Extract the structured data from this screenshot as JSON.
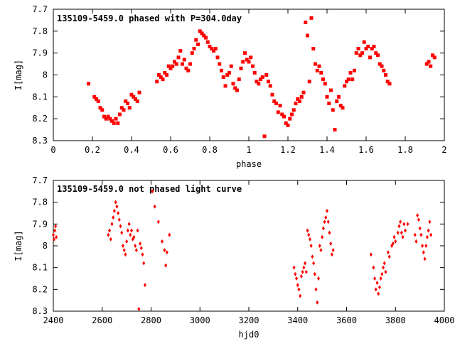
{
  "chart_data": [
    {
      "type": "scatter",
      "title": "135109-5459.0 phased with P=304.0day",
      "xlabel": "phase",
      "ylabel": "I[mag]",
      "xlim": [
        0,
        2
      ],
      "ylim": [
        7.7,
        8.3
      ],
      "y_inverted": true,
      "x_ticks": [
        "0",
        "0.2",
        "0.4",
        "0.6",
        "0.8",
        "1",
        "1.2",
        "1.4",
        "1.6",
        "1.8",
        "2"
      ],
      "y_ticks": [
        "7.7",
        "7.8",
        "7.9",
        "8",
        "8.1",
        "8.2",
        "8.3"
      ],
      "marker_color": "#ff0000",
      "grid": false,
      "points": [
        [
          0.18,
          8.04
        ],
        [
          0.21,
          8.1
        ],
        [
          0.22,
          8.11
        ],
        [
          0.23,
          8.12
        ],
        [
          0.24,
          8.15
        ],
        [
          0.25,
          8.16
        ],
        [
          0.26,
          8.19
        ],
        [
          0.27,
          8.2
        ],
        [
          0.28,
          8.19
        ],
        [
          0.29,
          8.2
        ],
        [
          0.3,
          8.21
        ],
        [
          0.31,
          8.22
        ],
        [
          0.32,
          8.2
        ],
        [
          0.33,
          8.22
        ],
        [
          0.34,
          8.18
        ],
        [
          0.35,
          8.15
        ],
        [
          0.36,
          8.16
        ],
        [
          0.37,
          8.12
        ],
        [
          0.38,
          8.13
        ],
        [
          0.39,
          8.15
        ],
        [
          0.4,
          8.09
        ],
        [
          0.41,
          8.1
        ],
        [
          0.42,
          8.11
        ],
        [
          0.43,
          8.12
        ],
        [
          0.44,
          8.08
        ],
        [
          0.53,
          8.03
        ],
        [
          0.54,
          8.0
        ],
        [
          0.55,
          8.01
        ],
        [
          0.56,
          8.02
        ],
        [
          0.57,
          7.99
        ],
        [
          0.58,
          8.0
        ],
        [
          0.59,
          7.96
        ],
        [
          0.6,
          7.97
        ],
        [
          0.61,
          7.96
        ],
        [
          0.62,
          7.94
        ],
        [
          0.63,
          7.95
        ],
        [
          0.64,
          7.92
        ],
        [
          0.65,
          7.89
        ],
        [
          0.66,
          7.95
        ],
        [
          0.67,
          7.93
        ],
        [
          0.68,
          7.97
        ],
        [
          0.69,
          7.98
        ],
        [
          0.7,
          7.95
        ],
        [
          0.71,
          7.9
        ],
        [
          0.72,
          7.88
        ],
        [
          0.73,
          7.84
        ],
        [
          0.74,
          7.86
        ],
        [
          0.75,
          7.8
        ],
        [
          0.76,
          7.81
        ],
        [
          0.77,
          7.82
        ],
        [
          0.78,
          7.83
        ],
        [
          0.79,
          7.85
        ],
        [
          0.8,
          7.87
        ],
        [
          0.81,
          7.88
        ],
        [
          0.82,
          7.89
        ],
        [
          0.83,
          7.88
        ],
        [
          0.84,
          7.92
        ],
        [
          0.85,
          7.95
        ],
        [
          0.86,
          7.98
        ],
        [
          0.87,
          8.01
        ],
        [
          0.88,
          8.05
        ],
        [
          0.89,
          8.0
        ],
        [
          0.9,
          7.99
        ],
        [
          0.91,
          7.96
        ],
        [
          0.92,
          8.04
        ],
        [
          0.93,
          8.06
        ],
        [
          0.94,
          8.07
        ],
        [
          0.95,
          8.02
        ],
        [
          0.96,
          7.97
        ],
        [
          0.97,
          7.94
        ],
        [
          0.98,
          7.9
        ],
        [
          0.99,
          7.93
        ],
        [
          1.0,
          7.94
        ],
        [
          1.01,
          7.92
        ],
        [
          1.02,
          7.96
        ],
        [
          1.03,
          7.99
        ],
        [
          1.04,
          8.03
        ],
        [
          1.05,
          8.04
        ],
        [
          1.06,
          8.02
        ],
        [
          1.07,
          8.01
        ],
        [
          1.08,
          8.28
        ],
        [
          1.09,
          8.0
        ],
        [
          1.1,
          8.03
        ],
        [
          1.11,
          8.05
        ],
        [
          1.12,
          8.09
        ],
        [
          1.13,
          8.12
        ],
        [
          1.14,
          8.13
        ],
        [
          1.15,
          8.17
        ],
        [
          1.16,
          8.14
        ],
        [
          1.17,
          8.18
        ],
        [
          1.18,
          8.19
        ],
        [
          1.19,
          8.22
        ],
        [
          1.2,
          8.23
        ],
        [
          1.21,
          8.2
        ],
        [
          1.22,
          8.18
        ],
        [
          1.23,
          8.16
        ],
        [
          1.24,
          8.13
        ],
        [
          1.25,
          8.11
        ],
        [
          1.26,
          8.12
        ],
        [
          1.27,
          8.1
        ],
        [
          1.28,
          8.08
        ],
        [
          1.29,
          7.76
        ],
        [
          1.3,
          7.82
        ],
        [
          1.31,
          8.03
        ],
        [
          1.32,
          7.74
        ],
        [
          1.33,
          7.88
        ],
        [
          1.34,
          7.95
        ],
        [
          1.35,
          7.98
        ],
        [
          1.36,
          7.96
        ],
        [
          1.37,
          7.99
        ],
        [
          1.38,
          8.02
        ],
        [
          1.39,
          8.04
        ],
        [
          1.4,
          8.1
        ],
        [
          1.41,
          8.13
        ],
        [
          1.42,
          8.07
        ],
        [
          1.43,
          8.16
        ],
        [
          1.44,
          8.25
        ],
        [
          1.45,
          8.12
        ],
        [
          1.46,
          8.1
        ],
        [
          1.47,
          8.14
        ],
        [
          1.48,
          8.15
        ],
        [
          1.49,
          8.05
        ],
        [
          1.5,
          8.03
        ],
        [
          1.51,
          8.02
        ],
        [
          1.52,
          7.99
        ],
        [
          1.53,
          8.02
        ],
        [
          1.54,
          7.98
        ],
        [
          1.55,
          7.9
        ],
        [
          1.56,
          7.88
        ],
        [
          1.57,
          7.91
        ],
        [
          1.58,
          7.9
        ],
        [
          1.59,
          7.85
        ],
        [
          1.6,
          7.88
        ],
        [
          1.61,
          7.87
        ],
        [
          1.62,
          7.92
        ],
        [
          1.63,
          7.88
        ],
        [
          1.64,
          7.87
        ],
        [
          1.65,
          7.9
        ],
        [
          1.66,
          7.91
        ],
        [
          1.67,
          7.95
        ],
        [
          1.68,
          7.96
        ],
        [
          1.69,
          7.98
        ],
        [
          1.7,
          8.0
        ],
        [
          1.71,
          8.03
        ],
        [
          1.72,
          8.04
        ],
        [
          1.91,
          7.95
        ],
        [
          1.92,
          7.94
        ],
        [
          1.93,
          7.96
        ],
        [
          1.94,
          7.91
        ],
        [
          1.95,
          7.92
        ]
      ]
    },
    {
      "type": "scatter",
      "title": "135109-5459.0 not phased light curve",
      "xlabel": "hjd0",
      "ylabel": "I[mag]",
      "xlim": [
        2400,
        4000
      ],
      "ylim": [
        7.7,
        8.3
      ],
      "y_inverted": true,
      "x_ticks": [
        "2400",
        "2600",
        "2800",
        "3000",
        "3200",
        "3400",
        "3600",
        "3800",
        "4000"
      ],
      "y_ticks": [
        "7.7",
        "7.8",
        "7.9",
        "8",
        "8.1",
        "8.2",
        "8.3"
      ],
      "marker_color": "#ff0000",
      "grid": false,
      "points": [
        [
          2400,
          7.95
        ],
        [
          2403,
          7.97
        ],
        [
          2406,
          7.93
        ],
        [
          2409,
          7.91
        ],
        [
          2412,
          7.96
        ],
        [
          2625,
          7.95
        ],
        [
          2630,
          7.93
        ],
        [
          2635,
          7.97
        ],
        [
          2640,
          7.9
        ],
        [
          2645,
          7.87
        ],
        [
          2650,
          7.84
        ],
        [
          2655,
          7.8
        ],
        [
          2660,
          7.82
        ],
        [
          2665,
          7.85
        ],
        [
          2670,
          7.88
        ],
        [
          2675,
          7.91
        ],
        [
          2680,
          7.94
        ],
        [
          2685,
          8.0
        ],
        [
          2690,
          8.02
        ],
        [
          2695,
          8.04
        ],
        [
          2700,
          7.98
        ],
        [
          2705,
          7.93
        ],
        [
          2710,
          7.9
        ],
        [
          2715,
          7.95
        ],
        [
          2720,
          7.93
        ],
        [
          2725,
          7.97
        ],
        [
          2730,
          7.96
        ],
        [
          2735,
          8.0
        ],
        [
          2740,
          8.02
        ],
        [
          2745,
          7.93
        ],
        [
          2750,
          8.29
        ],
        [
          2755,
          7.99
        ],
        [
          2760,
          8.01
        ],
        [
          2765,
          8.04
        ],
        [
          2770,
          8.08
        ],
        [
          2775,
          8.18
        ],
        [
          2805,
          7.75
        ],
        [
          2815,
          7.82
        ],
        [
          2830,
          7.89
        ],
        [
          2845,
          7.98
        ],
        [
          2855,
          8.02
        ],
        [
          2860,
          8.09
        ],
        [
          2865,
          8.03
        ],
        [
          2875,
          7.95
        ],
        [
          3385,
          8.1
        ],
        [
          3390,
          8.13
        ],
        [
          3395,
          8.15
        ],
        [
          3400,
          8.18
        ],
        [
          3405,
          8.2
        ],
        [
          3410,
          8.23
        ],
        [
          3415,
          8.14
        ],
        [
          3420,
          8.12
        ],
        [
          3425,
          8.1
        ],
        [
          3430,
          8.08
        ],
        [
          3435,
          8.12
        ],
        [
          3440,
          7.93
        ],
        [
          3445,
          7.95
        ],
        [
          3450,
          7.97
        ],
        [
          3455,
          8.0
        ],
        [
          3460,
          8.05
        ],
        [
          3465,
          8.08
        ],
        [
          3470,
          8.13
        ],
        [
          3475,
          8.2
        ],
        [
          3480,
          8.26
        ],
        [
          3485,
          8.15
        ],
        [
          3490,
          8.0
        ],
        [
          3495,
          8.02
        ],
        [
          3500,
          7.96
        ],
        [
          3505,
          7.92
        ],
        [
          3510,
          7.89
        ],
        [
          3515,
          7.87
        ],
        [
          3520,
          7.84
        ],
        [
          3525,
          7.89
        ],
        [
          3530,
          7.94
        ],
        [
          3535,
          7.99
        ],
        [
          3540,
          8.04
        ],
        [
          3545,
          8.02
        ],
        [
          3700,
          8.04
        ],
        [
          3710,
          8.1
        ],
        [
          3715,
          8.15
        ],
        [
          3720,
          8.2
        ],
        [
          3725,
          8.17
        ],
        [
          3730,
          8.22
        ],
        [
          3735,
          8.19
        ],
        [
          3740,
          8.15
        ],
        [
          3745,
          8.13
        ],
        [
          3750,
          8.1
        ],
        [
          3755,
          8.08
        ],
        [
          3760,
          8.12
        ],
        [
          3770,
          8.03
        ],
        [
          3775,
          8.05
        ],
        [
          3785,
          8.0
        ],
        [
          3790,
          7.99
        ],
        [
          3795,
          7.96
        ],
        [
          3800,
          7.98
        ],
        [
          3810,
          7.94
        ],
        [
          3815,
          7.91
        ],
        [
          3820,
          7.89
        ],
        [
          3825,
          7.94
        ],
        [
          3830,
          7.96
        ],
        [
          3835,
          7.9
        ],
        [
          3840,
          7.93
        ],
        [
          3850,
          7.9
        ],
        [
          3880,
          7.95
        ],
        [
          3885,
          7.98
        ],
        [
          3890,
          7.86
        ],
        [
          3895,
          7.88
        ],
        [
          3900,
          7.92
        ],
        [
          3905,
          7.95
        ],
        [
          3910,
          8.0
        ],
        [
          3915,
          8.03
        ],
        [
          3920,
          8.06
        ],
        [
          3925,
          8.0
        ],
        [
          3930,
          7.96
        ],
        [
          3935,
          7.93
        ],
        [
          3940,
          7.89
        ],
        [
          3945,
          7.95
        ]
      ]
    }
  ]
}
